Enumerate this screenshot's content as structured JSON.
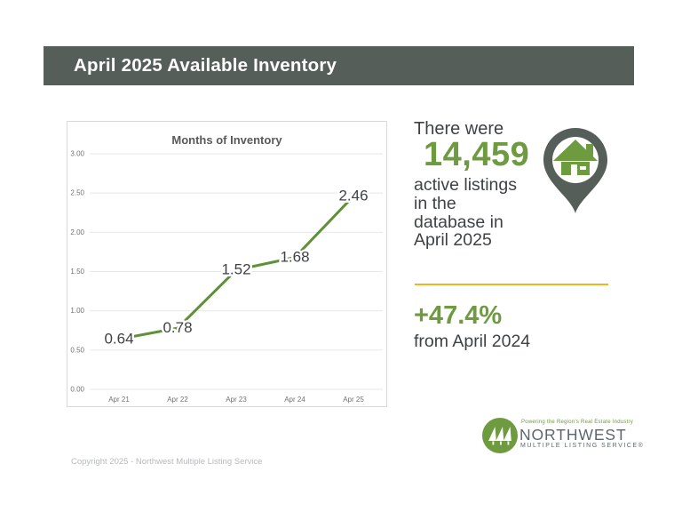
{
  "header": {
    "title": "April 2025 Available Inventory"
  },
  "colors": {
    "header_bg": "#565e59",
    "accent_green": "#6e9a40",
    "line_green": "#5f9138",
    "divider_gold": "#f2b31e",
    "pin_gray": "#565e59",
    "logo_gray": "#5d666d"
  },
  "chart_data": {
    "type": "line",
    "title": "Months of Inventory",
    "categories": [
      "Apr 21",
      "Apr 22",
      "Apr 23",
      "Apr 24",
      "Apr 25"
    ],
    "values": [
      0.64,
      0.78,
      1.52,
      1.68,
      2.46
    ],
    "xlabel": "",
    "ylabel": "",
    "ylim": [
      0,
      3
    ],
    "ytick_step": 0.5,
    "ytick_labels": [
      "0.00",
      "0.50",
      "1.00",
      "1.50",
      "2.00",
      "2.50",
      "3.00"
    ],
    "grid": true,
    "legend_position": "none",
    "series_color": "#5f9138"
  },
  "stats": {
    "intro": "There were",
    "count": "14,459",
    "desc_lines": [
      "active listings",
      "in the",
      "database in",
      "April 2025"
    ],
    "change": "+47.4%",
    "change_caption": "from April 2024"
  },
  "icons": {
    "pin": "map-pin-with-house-icon",
    "logo": "nwmls-trees-logo-icon"
  },
  "logo": {
    "tagline": "Powering the Region's Real Estate Industry",
    "name": "NORTHWEST",
    "subname": "MULTIPLE LISTING SERVICE®"
  },
  "footer": {
    "copyright": "Copyright 2025 - Northwest Multiple Listing Service"
  }
}
